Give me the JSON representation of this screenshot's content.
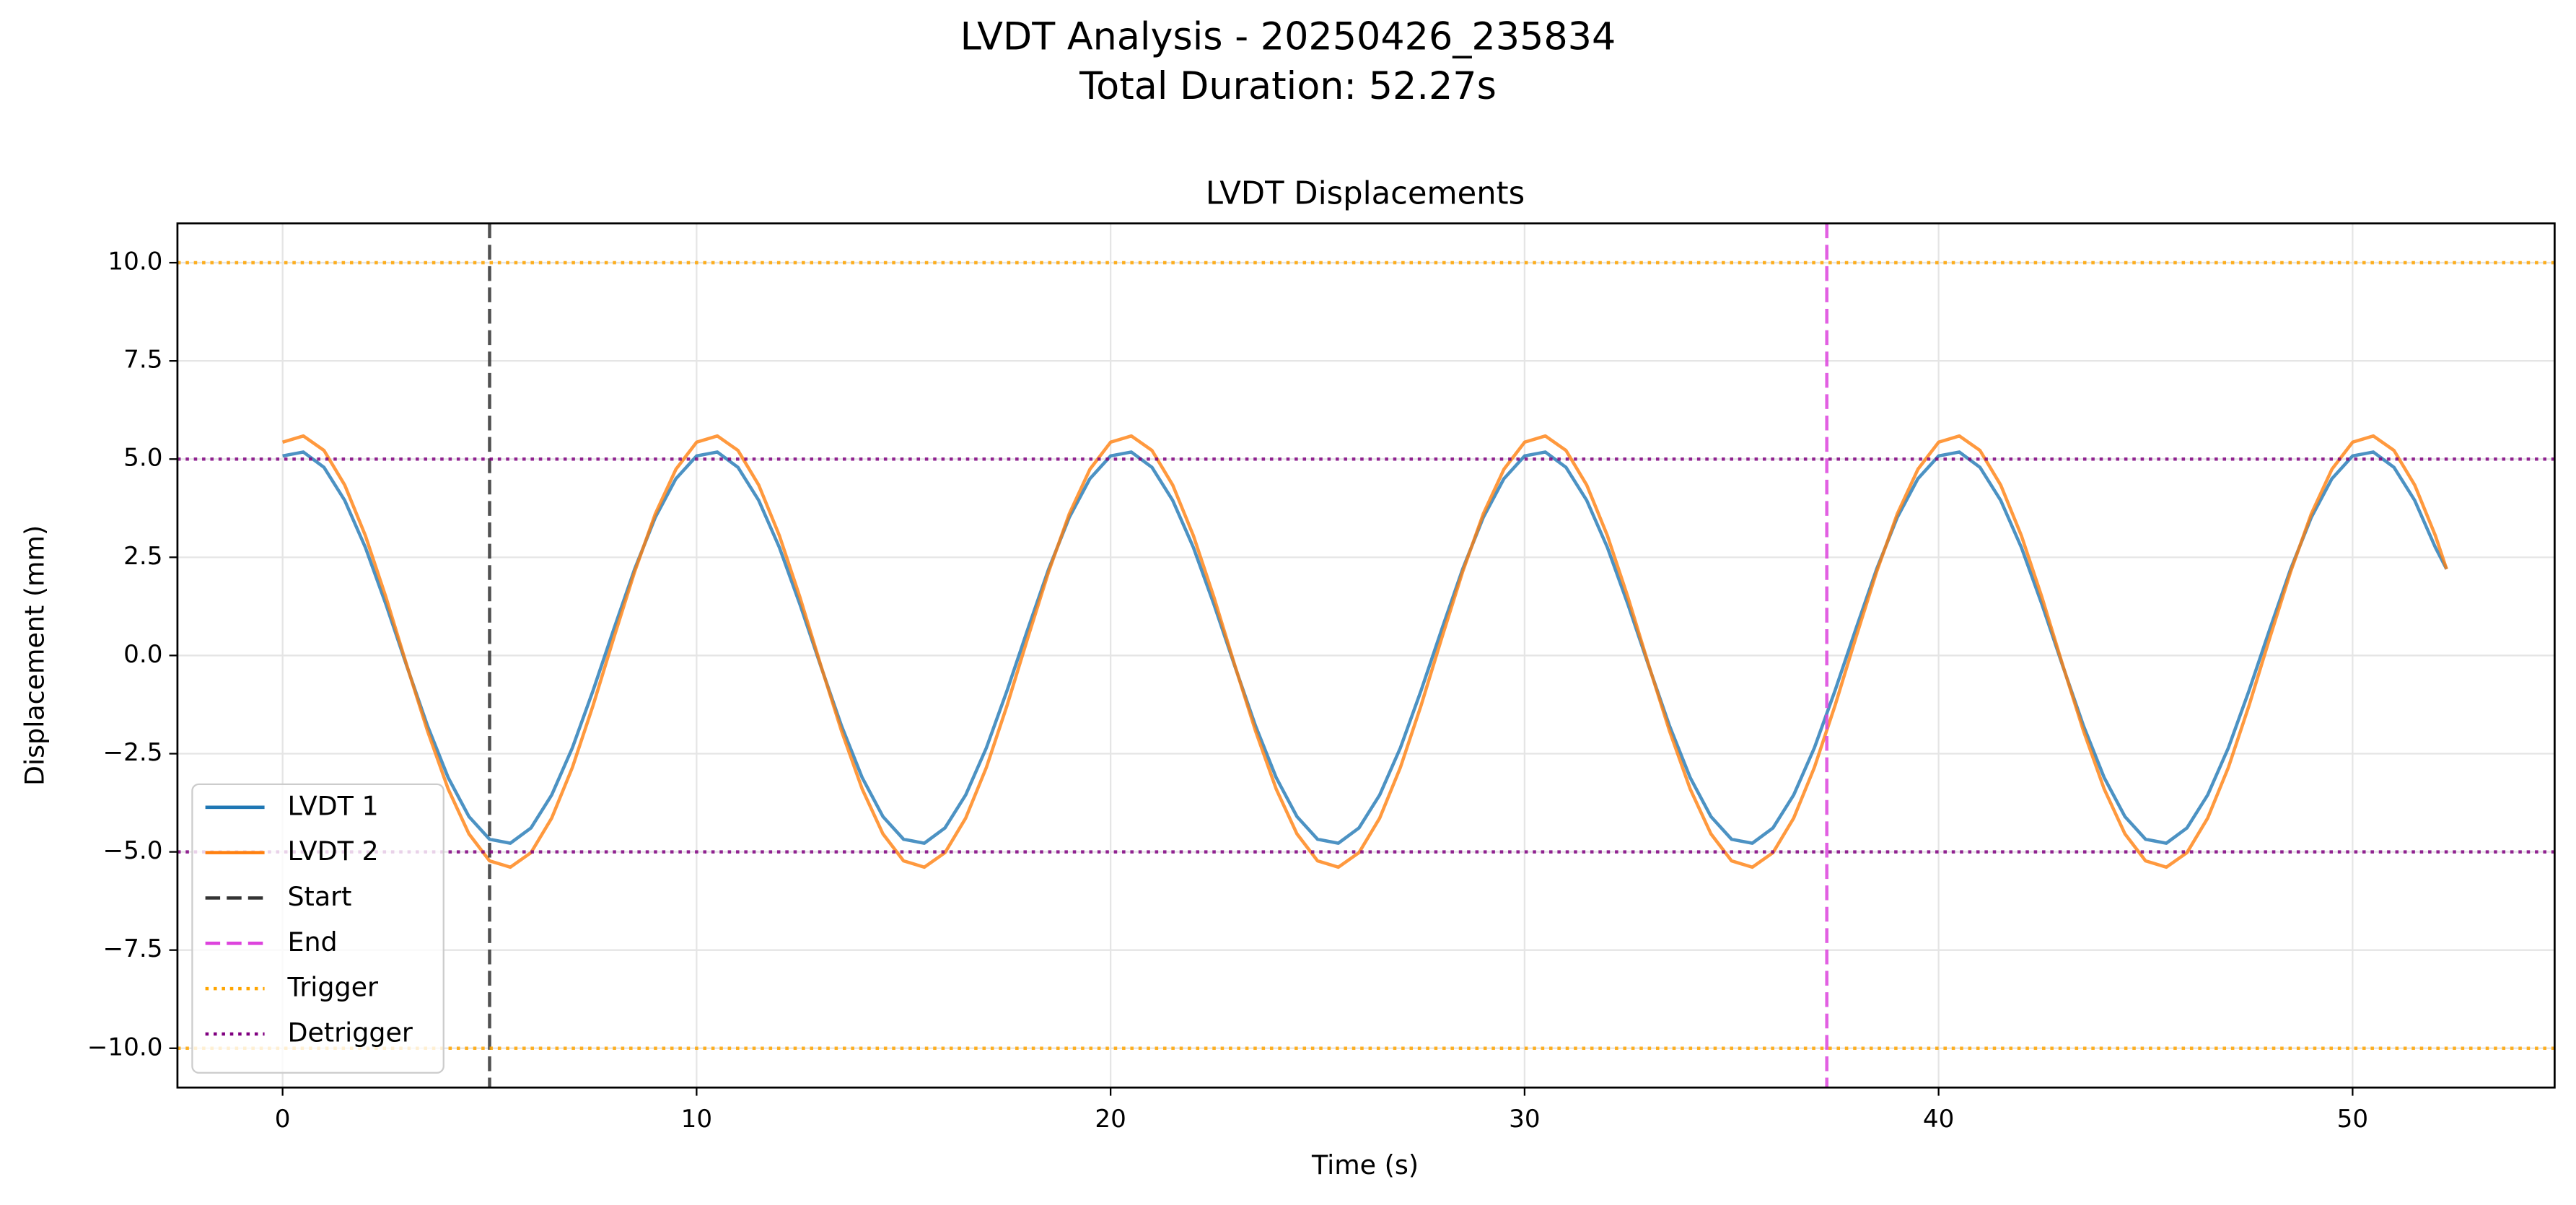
{
  "chart_data": {
    "type": "line",
    "title": "LVDT Analysis - 20250426_235834",
    "subtitle": "Total Duration: 52.27s",
    "axes_title": "LVDT Displacements",
    "x_label": "Time (s)",
    "y_label": "Displacement (mm)",
    "x": [
      0,
      0.5,
      1,
      1.5,
      2,
      2.5,
      3,
      3.5,
      4,
      4.5,
      5,
      5.5,
      6,
      6.5,
      7,
      7.5,
      8,
      8.5,
      9,
      9.5,
      10,
      10.5,
      11,
      11.5,
      12,
      12.5,
      13,
      13.5,
      14,
      14.5,
      15,
      15.5,
      16,
      16.5,
      17,
      17.5,
      18,
      18.5,
      19,
      19.5,
      20,
      20.5,
      21,
      21.5,
      22,
      22.5,
      23,
      23.5,
      24,
      24.5,
      25,
      25.5,
      26,
      26.5,
      27,
      27.5,
      28,
      28.5,
      29,
      29.5,
      30,
      30.5,
      31,
      31.5,
      32,
      32.5,
      33,
      33.5,
      34,
      34.5,
      35,
      35.5,
      36,
      36.5,
      37,
      37.5,
      38,
      38.5,
      39,
      39.5,
      40,
      40.5,
      41,
      41.5,
      42,
      42.5,
      43,
      43.5,
      44,
      44.5,
      45,
      45.5,
      46,
      46.5,
      47,
      47.5,
      48,
      48.5,
      49,
      49.5,
      50,
      50.5,
      51,
      51.5,
      52,
      52.27
    ],
    "series": [
      {
        "name": "LVDT 1",
        "color": "#1f77b4",
        "values": [
          5.08,
          5.18,
          4.79,
          3.95,
          2.75,
          1.29,
          -0.27,
          -1.79,
          -3.11,
          -4.1,
          -4.68,
          -4.78,
          -4.39,
          -3.55,
          -2.35,
          -0.89,
          0.67,
          2.19,
          3.51,
          4.5,
          5.08,
          5.18,
          4.79,
          3.95,
          2.75,
          1.29,
          -0.27,
          -1.79,
          -3.11,
          -4.1,
          -4.68,
          -4.78,
          -4.39,
          -3.55,
          -2.35,
          -0.89,
          0.67,
          2.19,
          3.51,
          4.5,
          5.08,
          5.18,
          4.79,
          3.95,
          2.75,
          1.29,
          -0.27,
          -1.79,
          -3.11,
          -4.1,
          -4.68,
          -4.78,
          -4.39,
          -3.55,
          -2.35,
          -0.89,
          0.67,
          2.19,
          3.51,
          4.5,
          5.08,
          5.18,
          4.79,
          3.95,
          2.75,
          1.29,
          -0.27,
          -1.79,
          -3.11,
          -4.1,
          -4.68,
          -4.78,
          -4.39,
          -3.55,
          -2.35,
          -0.89,
          0.67,
          2.19,
          3.51,
          4.5,
          5.08,
          5.18,
          4.79,
          3.95,
          2.75,
          1.29,
          -0.27,
          -1.79,
          -3.11,
          -4.1,
          -4.68,
          -4.78,
          -4.39,
          -3.55,
          -2.35,
          -0.89,
          0.67,
          2.19,
          3.51,
          4.5,
          5.08,
          5.18,
          4.79,
          3.95,
          2.75,
          2.2
        ]
      },
      {
        "name": "LVDT 2",
        "color": "#ff7f0e",
        "values": [
          5.43,
          5.59,
          5.22,
          4.34,
          3.05,
          1.47,
          -0.25,
          -1.92,
          -3.4,
          -4.54,
          -5.23,
          -5.39,
          -5.02,
          -4.14,
          -2.85,
          -1.27,
          0.45,
          2.12,
          3.6,
          4.74,
          5.43,
          5.59,
          5.22,
          4.34,
          3.05,
          1.47,
          -0.25,
          -1.92,
          -3.4,
          -4.54,
          -5.23,
          -5.39,
          -5.02,
          -4.14,
          -2.85,
          -1.27,
          0.45,
          2.12,
          3.6,
          4.74,
          5.43,
          5.59,
          5.22,
          4.34,
          3.05,
          1.47,
          -0.25,
          -1.92,
          -3.4,
          -4.54,
          -5.23,
          -5.39,
          -5.02,
          -4.14,
          -2.85,
          -1.27,
          0.45,
          2.12,
          3.6,
          4.74,
          5.43,
          5.59,
          5.22,
          4.34,
          3.05,
          1.47,
          -0.25,
          -1.92,
          -3.4,
          -4.54,
          -5.23,
          -5.39,
          -5.02,
          -4.14,
          -2.85,
          -1.27,
          0.45,
          2.12,
          3.6,
          4.74,
          5.43,
          5.59,
          5.22,
          4.34,
          3.05,
          1.47,
          -0.25,
          -1.92,
          -3.4,
          -4.54,
          -5.23,
          -5.39,
          -5.02,
          -4.14,
          -2.85,
          -1.27,
          0.45,
          2.12,
          3.6,
          4.74,
          5.43,
          5.59,
          5.22,
          4.34,
          3.05,
          2.2
        ]
      }
    ],
    "reference_lines": [
      {
        "name": "Start",
        "color": "#333333",
        "style": "dashed",
        "orientation": "vertical",
        "values": [
          5.0
        ]
      },
      {
        "name": "End",
        "color": "#dd44dd",
        "style": "dashed",
        "orientation": "vertical",
        "values": [
          37.3
        ]
      },
      {
        "name": "Trigger",
        "color": "#ffa500",
        "style": "dotted",
        "orientation": "horizontal",
        "values": [
          10,
          -10
        ]
      },
      {
        "name": "Detrigger",
        "color": "#800080",
        "style": "dotted",
        "orientation": "horizontal",
        "values": [
          5,
          -5
        ]
      }
    ],
    "xlim": [
      -2.54,
      54.88
    ],
    "ylim": [
      -11.0,
      11.0
    ],
    "xticks": [
      0,
      10,
      20,
      30,
      40,
      50
    ],
    "yticks": [
      {
        "value": 10,
        "label": "10.0"
      },
      7.5,
      {
        "value": 5,
        "label": "5.0"
      },
      2.5,
      {
        "value": 0,
        "label": "0.0"
      },
      {
        "value": -2.5,
        "label": "−2.5"
      },
      {
        "value": -5,
        "label": "−5.0"
      },
      {
        "value": -7.5,
        "label": "−7.5"
      },
      {
        "value": -10,
        "label": "−10.0"
      }
    ],
    "grid": true,
    "legend": "lower left"
  }
}
